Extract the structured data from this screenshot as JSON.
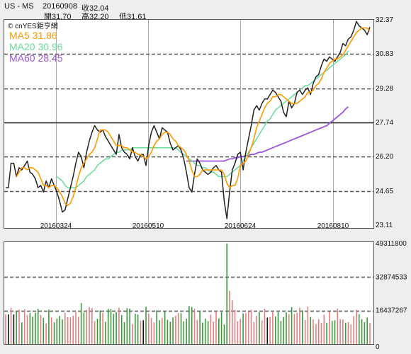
{
  "header": {
    "symbol": "US - MS",
    "date": "20160908",
    "close_label": "收32.04",
    "open_label": "開31.70",
    "high_label": "高32.20",
    "low_label": "低31.61"
  },
  "legend": {
    "watermark": "© cnYES鉅亨網",
    "ma5": "MA5 31.86",
    "ma20": "MA20 30.96",
    "ma60": "MA60 28.45"
  },
  "colors": {
    "price": "#222222",
    "ma5": "#ff9900",
    "ma20": "#66dd99",
    "ma60": "#9955dd",
    "vol_up": "#e08080",
    "vol_down": "#3a9a3a",
    "vol_flat": "#111111",
    "grid_dash": "#555555"
  },
  "chart_data": [
    {
      "type": "line",
      "x_tick_labels": [
        "20160324",
        "20160510",
        "20160624",
        "20160810"
      ],
      "y_tick_labels": [
        "32.37",
        "30.83",
        "29.28",
        "27.74",
        "26.20",
        "24.65",
        "23.11"
      ],
      "ylim": [
        23.11,
        32.37
      ],
      "reference_line": 27.74,
      "series": [
        {
          "name": "price",
          "values": [
            24.8,
            24.8,
            25.9,
            25.9,
            25.3,
            25.7,
            25.6,
            25.8,
            26.0,
            25.5,
            25.4,
            25.2,
            24.8,
            24.9,
            24.6,
            25.1,
            24.8,
            25.2,
            24.9,
            24.6,
            24.2,
            23.7,
            23.8,
            24.3,
            24.8,
            25.3,
            25.9,
            26.4,
            26.2,
            25.7,
            26.4,
            26.9,
            27.3,
            27.6,
            27.4,
            27.3,
            27.4,
            27.1,
            26.9,
            26.7,
            26.5,
            26.3,
            27.2,
            26.6,
            26.4,
            26.3,
            26.1,
            26.6,
            26.2,
            26.0,
            26.3,
            26.3,
            25.8,
            26.7,
            27.3,
            27.6,
            27.3,
            27.0,
            27.5,
            27.4,
            27.3,
            26.8,
            26.5,
            26.6,
            26.7,
            26.5,
            26.1,
            25.5,
            24.8,
            24.6,
            25.4,
            26.1,
            25.9,
            25.6,
            25.5,
            25.4,
            25.5,
            25.7,
            25.8,
            25.6,
            25.5,
            24.2,
            23.4,
            24.6,
            25.6,
            25.9,
            26.3,
            26.4,
            25.6,
            26.4,
            27.0,
            27.6,
            28.3,
            28.5,
            28.3,
            28.6,
            28.8,
            28.8,
            29.0,
            29.2,
            29.1,
            28.9,
            28.7,
            28.2,
            28.0,
            28.7,
            28.4,
            28.6,
            29.1,
            29.2,
            29.0,
            29.2,
            29.3,
            29.0,
            29.5,
            29.8,
            29.9,
            30.3,
            30.6,
            30.5,
            30.7,
            30.6,
            30.5,
            30.7,
            30.9,
            31.3,
            31.2,
            31.5,
            31.6,
            31.9,
            32.3,
            32.1,
            32.0,
            31.9,
            31.7,
            32.04
          ]
        },
        {
          "name": "MA5",
          "values": [
            null,
            null,
            null,
            null,
            25.3,
            25.5,
            25.7,
            25.7,
            25.6,
            25.7,
            25.7,
            25.6,
            25.5,
            25.2,
            24.9,
            24.9,
            24.8,
            24.9,
            24.9,
            24.8,
            24.6,
            24.4,
            24.1,
            24.0,
            24.1,
            24.4,
            24.8,
            25.3,
            25.7,
            25.9,
            26.1,
            26.3,
            26.4,
            26.6,
            27.0,
            27.4,
            27.4,
            27.4,
            27.3,
            27.1,
            26.9,
            26.7,
            26.7,
            26.7,
            26.6,
            26.6,
            26.5,
            26.4,
            26.4,
            26.3,
            26.3,
            26.2,
            26.1,
            26.2,
            26.4,
            26.7,
            26.9,
            27.0,
            27.2,
            27.3,
            27.3,
            27.2,
            27.0,
            26.9,
            26.7,
            26.6,
            26.5,
            26.3,
            26.0,
            25.6,
            25.3,
            25.3,
            25.4,
            25.6,
            25.6,
            25.6,
            25.6,
            25.6,
            25.6,
            25.6,
            25.6,
            25.4,
            25.0,
            24.8,
            24.9,
            24.9,
            25.2,
            25.8,
            25.9,
            26.0,
            26.3,
            26.6,
            27.0,
            27.5,
            27.8,
            28.1,
            28.4,
            28.6,
            28.7,
            28.9,
            28.9,
            29.0,
            29.0,
            28.9,
            28.8,
            28.7,
            28.6,
            28.6,
            28.6,
            28.7,
            28.8,
            28.9,
            29.1,
            29.1,
            29.2,
            29.4,
            29.5,
            29.7,
            30.0,
            30.2,
            30.4,
            30.5,
            30.6,
            30.6,
            30.7,
            30.8,
            31.0,
            31.2,
            31.4,
            31.6,
            31.8,
            31.9,
            32.0,
            32.0,
            32.0,
            31.86
          ]
        },
        {
          "name": "MA20",
          "values": [
            null,
            null,
            null,
            null,
            null,
            null,
            null,
            null,
            null,
            null,
            null,
            null,
            null,
            null,
            null,
            null,
            null,
            null,
            null,
            25.3,
            25.2,
            25.1,
            24.9,
            24.8,
            24.8,
            24.8,
            24.8,
            24.9,
            25.0,
            25.1,
            25.3,
            25.4,
            25.5,
            25.6,
            25.8,
            25.9,
            26.0,
            26.1,
            26.1,
            26.2,
            26.3,
            26.4,
            26.4,
            26.5,
            26.5,
            26.5,
            26.5,
            26.6,
            26.6,
            26.6,
            26.6,
            26.6,
            26.6,
            26.6,
            26.6,
            26.6,
            26.6,
            26.6,
            26.6,
            26.6,
            26.6,
            26.6,
            26.6,
            26.6,
            26.5,
            26.4,
            26.3,
            26.2,
            26.1,
            26.0,
            25.9,
            25.8,
            25.8,
            25.7,
            25.7,
            25.6,
            25.5,
            25.5,
            25.4,
            25.3,
            25.3,
            25.3,
            25.3,
            25.4,
            25.5,
            25.6,
            25.7,
            25.8,
            26.0,
            26.2,
            26.4,
            26.6,
            26.8,
            27.0,
            27.2,
            27.4,
            27.6,
            27.8,
            27.9,
            28.1,
            28.3,
            28.4,
            28.5,
            28.6,
            28.7,
            28.8,
            28.9,
            29.0,
            29.1,
            29.2,
            29.3,
            29.4,
            29.4,
            29.5,
            29.6,
            29.7,
            29.8,
            29.9,
            30.0,
            30.1,
            30.2,
            30.3,
            30.4,
            30.5,
            30.6,
            30.7,
            30.8,
            30.96
          ]
        },
        {
          "name": "MA60",
          "values": [
            null,
            null,
            null,
            null,
            null,
            null,
            null,
            null,
            null,
            null,
            null,
            null,
            null,
            null,
            null,
            null,
            null,
            null,
            null,
            null,
            null,
            null,
            null,
            null,
            null,
            null,
            null,
            null,
            null,
            null,
            null,
            null,
            null,
            null,
            null,
            null,
            null,
            null,
            null,
            null,
            null,
            null,
            null,
            null,
            null,
            null,
            null,
            null,
            null,
            null,
            null,
            null,
            null,
            null,
            null,
            null,
            null,
            null,
            null,
            null,
            null,
            null,
            null,
            null,
            null,
            null,
            null,
            26.0,
            26.0,
            26.0,
            26.0,
            26.0,
            26.0,
            26.0,
            26.0,
            26.0,
            26.0,
            26.0,
            26.0,
            26.0,
            26.0,
            26.0,
            26.05,
            26.1,
            26.1,
            26.15,
            26.15,
            26.2,
            26.2,
            26.25,
            26.25,
            26.3,
            26.3,
            26.35,
            26.4,
            26.4,
            26.45,
            26.5,
            26.55,
            26.6,
            26.65,
            26.7,
            26.75,
            26.8,
            26.85,
            26.9,
            26.95,
            27.0,
            27.05,
            27.1,
            27.15,
            27.2,
            27.25,
            27.3,
            27.35,
            27.4,
            27.45,
            27.5,
            27.55,
            27.6,
            27.7,
            27.8,
            27.9,
            28.0,
            28.1,
            28.2,
            28.35,
            28.45
          ]
        }
      ]
    },
    {
      "type": "bar",
      "y_tick_labels": [
        "49311800",
        "32874533",
        "16437267",
        "0"
      ],
      "ylim": [
        0,
        49311800
      ],
      "series": [
        {
          "name": "volume",
          "values": [
            14.5,
            14.5,
            17.8,
            14.5,
            16.2,
            16.9,
            10.7,
            17.1,
            14.1,
            15.2,
            13.4,
            15.4,
            17.3,
            14.3,
            12.8,
            10.2,
            16.9,
            13.1,
            10.7,
            12.5,
            13.8,
            12.1,
            15.4,
            13.2,
            13.1,
            13.9,
            15.7,
            13.4,
            20.1,
            15.5,
            16.8,
            18.1,
            17.7,
            11.3,
            12.4,
            16.5,
            15.3,
            10.9,
            17.3,
            17.2,
            14.8,
            15.6,
            17.9,
            14.2,
            10.8,
            17.6,
            17.4,
            9.8,
            14.9,
            14.5,
            11.5,
            11.7,
            18.3,
            15.0,
            12.8,
            10.7,
            16.6,
            11.7,
            12.8,
            15.9,
            11.9,
            11.0,
            13.1,
            13.9,
            15.2,
            15.2,
            11.1,
            12.5,
            18.7,
            18.2,
            17.4,
            11.9,
            15.9,
            10.6,
            12.5,
            11.3,
            14.4,
            11.0,
            16.1,
            12.6,
            15.7,
            9.6,
            49.3,
            26.1,
            21.4,
            16.8,
            11.1,
            12.4,
            15.0,
            15.2,
            16.0,
            16.8,
            10.8,
            13.9,
            15.7,
            11.6,
            17.3,
            13.0,
            13.3,
            15.6,
            13.5,
            15.7,
            11.3,
            13.3,
            15.6,
            14.7,
            18.1,
            14.8,
            15.3,
            17.9,
            16.6,
            11.8,
            18.4,
            13.3,
            12.1,
            9.9,
            12.2,
            10.4,
            14.4,
            10.5,
            15.9,
            11.4,
            11.7,
            17.4,
            12.2,
            12.1,
            10.5,
            10.8,
            9.7,
            13.6,
            16.8,
            14.6,
            12.2,
            10.8,
            13.0,
            10.3
          ]
        }
      ]
    }
  ]
}
